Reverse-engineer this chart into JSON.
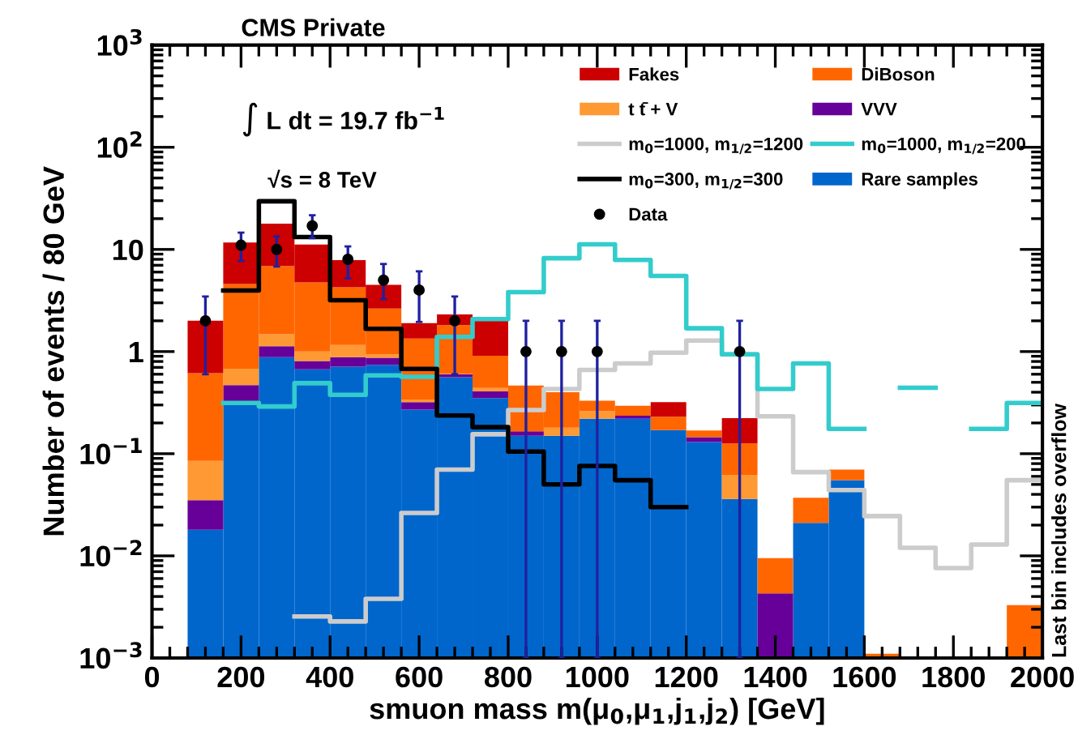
{
  "chart_data": {
    "type": "bar",
    "title": "CMS Private",
    "xlabel": "smuon mass m(μ$_{0}$,μ$_{1}$,j$_{1}$,j$_{2}$) [GeV]",
    "ylabel": "Number of events / 80 GeV",
    "annotations": [
      "∫ L dt = 19.7 fb$^{−1}$",
      "√s = 8 TeV",
      "Last bin includes overflow"
    ],
    "x": [
      120,
      200,
      280,
      360,
      440,
      520,
      600,
      680,
      760,
      840,
      920,
      1000,
      1080,
      1160,
      1240,
      1320,
      1400,
      1480,
      1560,
      1640,
      1720,
      1800,
      1880,
      1960
    ],
    "stacked": true,
    "log": "y",
    "grid": false,
    "legend": "top right",
    "xlim": [
      0,
      2000
    ],
    "xticks": [
      0,
      200,
      400,
      600,
      800,
      1000,
      1200,
      1400,
      1600,
      1800,
      2000
    ],
    "ylim": [
      0.001,
      1000
    ],
    "yticks": [
      {
        "value": 0.001,
        "label": "10$^{−3}$"
      },
      {
        "value": 0.01,
        "label": "10$^{−2}$"
      },
      {
        "value": 0.1,
        "label": "10$^{−1}$"
      },
      1,
      10,
      {
        "value": 100,
        "label": "10$^{2}$"
      },
      {
        "value": 1000,
        "label": "10$^{3}$"
      }
    ],
    "series": [
      {
        "name": "Rare samples",
        "color": "#0066cc",
        "values": [
          0.018,
          0.31,
          0.88,
          0.67,
          0.71,
          0.74,
          0.27,
          0.56,
          0.35,
          0.15,
          0.15,
          0.22,
          0.22,
          0.17,
          0.13,
          0.036,
          null,
          0.021,
          0.055,
          null,
          null,
          null,
          null,
          null
        ]
      },
      {
        "name": "VVV",
        "color": "#660099",
        "values": [
          0.017,
          0.16,
          0.25,
          0.14,
          0.17,
          0.13,
          0.05,
          0.04,
          0.06,
          0.016,
          null,
          null,
          0.015,
          null,
          0.015,
          null,
          0.0043,
          null,
          null,
          null,
          null,
          null,
          null,
          null
        ]
      },
      {
        "name": "t t̄ + V",
        "color": "#ff9933",
        "values": [
          0.05,
          0.21,
          0.35,
          0.19,
          0.28,
          0.07,
          0.02,
          0.01,
          0.03,
          null,
          0.03,
          0.04,
          null,
          null,
          null,
          0.026,
          null,
          null,
          null,
          null,
          null,
          null,
          null,
          null
        ]
      },
      {
        "name": "DiBoson",
        "color": "#ff6600",
        "values": [
          0.53,
          3.9,
          5.4,
          3.75,
          3.1,
          1.7,
          1.0,
          1.2,
          0.47,
          0.3,
          0.22,
          0.07,
          0.06,
          0.06,
          0.024,
          0.064,
          0.0052,
          0.016,
          0.015,
          0.0011,
          null,
          null,
          null,
          0.0033
        ]
      },
      {
        "name": "Fakes",
        "color": "#cc0000",
        "values": [
          1.39,
          7.1,
          11.0,
          6.4,
          3.6,
          1.85,
          0.56,
          0.5,
          1.09,
          null,
          null,
          null,
          null,
          0.09,
          null,
          0.097,
          null,
          null,
          null,
          null,
          null,
          null,
          null,
          null
        ]
      },
      {
        "name": "m$_{0}$=1000, m$_{1/2}$=1200",
        "type": "step",
        "color": "#cccccc",
        "x": [
          320,
          400,
          480,
          560,
          640,
          720,
          800,
          880,
          960,
          1040,
          1120,
          1200,
          1280,
          1360,
          1440,
          1520,
          1600,
          1680,
          1760,
          1840,
          1920,
          2000
        ],
        "values": [
          0.00255,
          0.00228,
          0.0038,
          0.0263,
          0.07,
          0.155,
          0.268,
          0.43,
          0.66,
          0.765,
          0.975,
          1.28,
          0.94,
          0.232,
          0.066,
          0.044,
          0.0245,
          0.012,
          0.0076,
          0.0129,
          0.055,
          0.055
        ]
      },
      {
        "name": "m$_{0}$=1000, m$_{1/2}$=200",
        "type": "step",
        "color": "#33cccc",
        "x": [
          160,
          240,
          320,
          400,
          480,
          560,
          640,
          720,
          800,
          880,
          960,
          1040,
          1120,
          1200,
          1280,
          1360,
          1440,
          1520,
          1600,
          1680,
          1760,
          1840,
          1920,
          2000
        ],
        "values": [
          0.314,
          0.29,
          0.49,
          0.377,
          0.585,
          0.565,
          1.39,
          2.08,
          3.82,
          8.2,
          11.2,
          7.9,
          5.5,
          1.69,
          0.94,
          0.43,
          0.765,
          0.175,
          null,
          0.442,
          null,
          0.175,
          0.314,
          0.314
        ]
      },
      {
        "name": "m$_{0}$=300, m$_{1/2}$=300",
        "type": "step",
        "color": "#000000",
        "x": [
          160,
          240,
          320,
          400,
          480,
          560,
          640,
          720,
          800,
          880,
          960,
          1040,
          1120,
          1200
        ],
        "values": [
          3.96,
          29.6,
          13.2,
          3.18,
          1.67,
          0.677,
          0.237,
          0.182,
          0.105,
          0.05,
          0.076,
          0.055,
          0.03,
          0.03
        ]
      },
      {
        "name": "Data",
        "type": "scatter",
        "color": "#000000",
        "marker": "circle",
        "x": [
          120,
          200,
          280,
          360,
          440,
          520,
          600,
          680,
          840,
          920,
          1000,
          1320
        ],
        "values": [
          2,
          11,
          10,
          17,
          8,
          5,
          4,
          2,
          1,
          1,
          1,
          1
        ],
        "errors": [
          [
            0.6,
            3.46
          ],
          [
            7.7,
            14.6
          ],
          [
            6.8,
            13.4
          ],
          [
            12.9,
            21.6
          ],
          [
            5.2,
            10.7
          ],
          [
            3.26,
            7.2
          ],
          [
            1.95,
            6.1
          ],
          [
            0.6,
            3.46
          ],
          [
            0.001,
            2.0
          ],
          [
            0.001,
            2.0
          ],
          [
            0.001,
            2.0
          ],
          [
            0.001,
            2.0
          ]
        ]
      }
    ]
  }
}
